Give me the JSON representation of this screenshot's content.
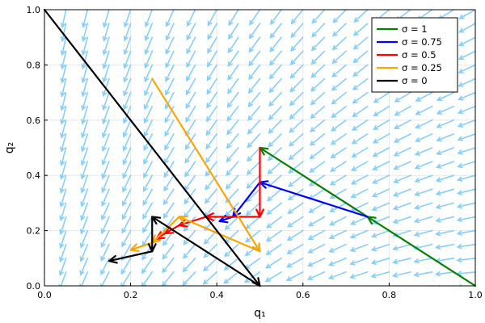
{
  "chart_data": {
    "type": "line",
    "title": "",
    "xlabel": "q₁",
    "ylabel": "q₂",
    "xlim": [
      0,
      1
    ],
    "ylim": [
      0,
      1
    ],
    "xticks": [
      0.0,
      0.2,
      0.4,
      0.6,
      0.8,
      1.0
    ],
    "yticks": [
      0.0,
      0.2,
      0.4,
      0.6,
      0.8,
      1.0
    ],
    "xtick_labels": [
      "0.0",
      "0.2",
      "0.4",
      "0.6",
      "0.8",
      "1.0"
    ],
    "ytick_labels": [
      "0.0",
      "0.2",
      "0.4",
      "0.6",
      "0.8",
      "1.0"
    ],
    "grid": true,
    "legend_position": "top-right",
    "vector_field": {
      "color": "#87cefa",
      "description_visible": "arrow field pointing toward lower-left",
      "grid_step": 0.05
    },
    "series": [
      {
        "name": "σ = 1",
        "color": "#008000",
        "x": [
          1.0,
          0.75,
          0.5
        ],
        "y": [
          0.0,
          0.25,
          0.5
        ]
      },
      {
        "name": "σ = 0.75",
        "color": "#0000ff",
        "x": [
          0.75,
          0.5,
          0.4375,
          0.40625
        ],
        "y": [
          0.25,
          0.375,
          0.25,
          0.234
        ]
      },
      {
        "name": "σ = 0.5",
        "color": "#ff0000",
        "x": [
          0.5,
          0.5,
          0.5,
          0.375,
          0.3125,
          0.28,
          0.26
        ],
        "y": [
          0.5,
          0.25,
          0.25,
          0.25,
          0.219,
          0.19,
          0.17
        ]
      },
      {
        "name": "σ = 0.25",
        "color": "#ffa500",
        "x": [
          0.25,
          0.5,
          0.3125,
          0.25,
          0.2
        ],
        "y": [
          0.75,
          0.125,
          0.25,
          0.156,
          0.13
        ]
      },
      {
        "name": "σ = 0",
        "color": "#000000",
        "x": [
          0.0,
          0.5,
          0.25,
          0.25,
          0.25,
          0.15
        ],
        "y": [
          1.0,
          0.0,
          0.25,
          0.125,
          0.125,
          0.09
        ]
      }
    ]
  }
}
